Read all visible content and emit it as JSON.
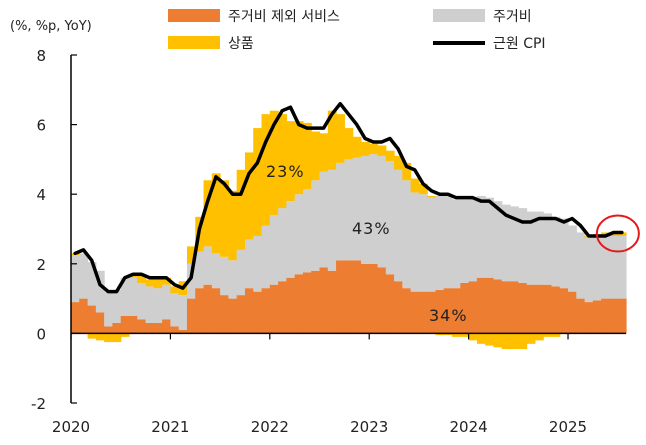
{
  "chart_data": {
    "type": "area",
    "stacked": true,
    "frequency": "monthly",
    "unit_label": "(%, %p, YoY)",
    "x_start": "2020-01",
    "x_ticks": [
      "2020",
      "2021",
      "2022",
      "2023",
      "2024",
      "2025"
    ],
    "y_ticks": [
      -2,
      0,
      2,
      4,
      6,
      8
    ],
    "ylim": [
      -2,
      8
    ],
    "legend": {
      "placement": "top",
      "entries": [
        "주거비 제외 서비스",
        "주거비",
        "상품",
        "근원 CPI"
      ]
    },
    "series": [
      {
        "name": "주거비 제외 서비스",
        "type": "bar-area",
        "color": "#ED7D31",
        "values": [
          0.9,
          1.0,
          0.8,
          0.6,
          0.2,
          0.3,
          0.5,
          0.5,
          0.4,
          0.3,
          0.3,
          0.4,
          0.2,
          0.1,
          1.0,
          1.3,
          1.4,
          1.3,
          1.1,
          1.0,
          1.1,
          1.3,
          1.2,
          1.3,
          1.4,
          1.5,
          1.6,
          1.7,
          1.75,
          1.8,
          1.9,
          1.8,
          2.1,
          2.1,
          2.1,
          2.0,
          2.0,
          1.9,
          1.7,
          1.5,
          1.3,
          1.2,
          1.2,
          1.2,
          1.25,
          1.3,
          1.3,
          1.45,
          1.5,
          1.6,
          1.6,
          1.55,
          1.5,
          1.5,
          1.45,
          1.4,
          1.4,
          1.4,
          1.35,
          1.3,
          1.2,
          1.0,
          0.9,
          0.95,
          1.0,
          1.0,
          1.0
        ]
      },
      {
        "name": "주거비",
        "type": "bar-area",
        "color": "#CFCFCF",
        "values": [
          1.35,
          1.3,
          1.25,
          1.2,
          1.0,
          0.95,
          1.1,
          1.1,
          1.05,
          1.05,
          1.0,
          1.0,
          0.95,
          1.0,
          1.0,
          1.05,
          1.1,
          1.0,
          1.1,
          1.1,
          1.3,
          1.4,
          1.6,
          1.8,
          2.0,
          2.1,
          2.2,
          2.3,
          2.4,
          2.6,
          2.75,
          2.9,
          2.8,
          2.9,
          2.95,
          3.1,
          3.15,
          3.2,
          3.25,
          3.2,
          3.1,
          2.85,
          2.8,
          2.7,
          2.7,
          2.65,
          2.55,
          2.4,
          2.4,
          2.35,
          2.3,
          2.25,
          2.2,
          2.15,
          2.15,
          2.1,
          2.1,
          2.05,
          2.0,
          2.0,
          1.9,
          1.9,
          1.85,
          1.8,
          1.8,
          1.8,
          1.8
        ]
      },
      {
        "name": "상품",
        "type": "bar-area",
        "color": "#FFC000",
        "values": [
          0.05,
          0.0,
          -0.15,
          -0.2,
          -0.25,
          -0.25,
          -0.1,
          0.05,
          0.25,
          0.2,
          0.3,
          0.2,
          0.2,
          0.4,
          0.5,
          1.0,
          1.9,
          2.3,
          2.2,
          2.0,
          2.3,
          2.5,
          3.1,
          3.2,
          3.0,
          2.7,
          2.3,
          2.1,
          1.9,
          1.4,
          1.1,
          1.7,
          1.4,
          0.9,
          0.6,
          0.4,
          0.3,
          0.3,
          0.3,
          0.4,
          0.5,
          0.4,
          0.3,
          0.05,
          -0.05,
          -0.05,
          -0.1,
          -0.1,
          -0.2,
          -0.3,
          -0.35,
          -0.4,
          -0.45,
          -0.45,
          -0.45,
          -0.3,
          -0.2,
          -0.1,
          -0.1,
          0.0,
          0.0,
          0.0,
          0.05,
          0.1,
          0.1,
          0.1,
          0.1
        ]
      },
      {
        "name": "근원 CPI",
        "type": "line",
        "color": "#000000",
        "values": [
          2.3,
          2.4,
          2.1,
          1.4,
          1.2,
          1.2,
          1.6,
          1.7,
          1.7,
          1.6,
          1.6,
          1.6,
          1.4,
          1.3,
          1.6,
          3.0,
          3.8,
          4.5,
          4.3,
          4.0,
          4.0,
          4.6,
          4.9,
          5.5,
          6.0,
          6.4,
          6.5,
          6.0,
          5.9,
          5.9,
          5.9,
          6.3,
          6.6,
          6.3,
          6.0,
          5.6,
          5.5,
          5.5,
          5.6,
          5.3,
          4.8,
          4.7,
          4.3,
          4.1,
          4.0,
          4.0,
          3.9,
          3.9,
          3.9,
          3.8,
          3.8,
          3.6,
          3.4,
          3.3,
          3.2,
          3.2,
          3.3,
          3.3,
          3.3,
          3.2,
          3.3,
          3.1,
          2.8,
          2.8,
          2.8,
          2.9,
          2.9
        ]
      }
    ],
    "annotations": [
      {
        "text": "23%",
        "series": "상품"
      },
      {
        "text": "43%",
        "series": "주거비"
      },
      {
        "text": "34%",
        "series": "주거비 제외 서비스"
      }
    ],
    "highlight": {
      "shape": "circle",
      "color": "#E31A1C",
      "target_index": 66
    }
  }
}
